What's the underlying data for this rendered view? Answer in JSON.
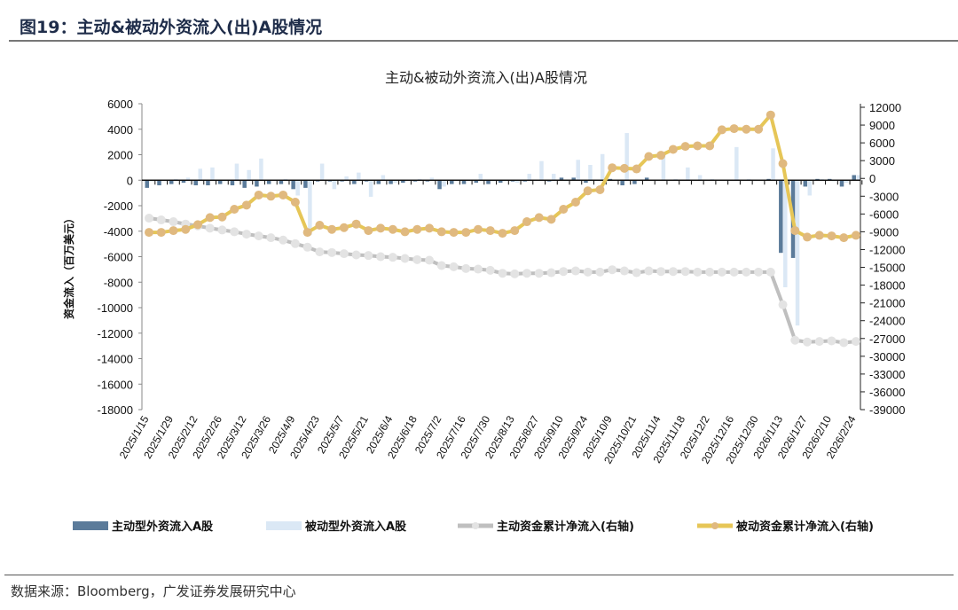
{
  "figure_title": "图19：主动&被动外资流入(出)A股情况",
  "source": "数据来源：Bloomberg，广发证券发展研究中心",
  "chart_data": {
    "type": "bar+line",
    "title": "主动&被动外资流入(出)A股情况",
    "ylabel": "资金流入（百万美元）",
    "ylim_left": [
      -18000,
      6000
    ],
    "ylim_right": [
      -39000,
      12000
    ],
    "left_ticks": [
      "6000",
      "4000",
      "2000",
      "0",
      "-2000",
      "-4000",
      "-6000",
      "-8000",
      "-10000",
      "-12000",
      "-14000",
      "-16000",
      "-18000"
    ],
    "right_ticks": [
      "12000",
      "9000",
      "6000",
      "3000",
      "0",
      "-3000",
      "-6000",
      "-9000",
      "-12000",
      "-15000",
      "-18000",
      "-21000",
      "-24000",
      "-27000",
      "-30000",
      "-33000",
      "-36000",
      "-39000"
    ],
    "x_tick_labels": [
      "2025/1/15",
      "2025/1/29",
      "2025/2/12",
      "2025/2/26",
      "2025/3/12",
      "2025/3/26",
      "2025/4/9",
      "2025/4/23",
      "2025/5/7",
      "2025/5/21",
      "2025/6/4",
      "2025/6/18",
      "2025/7/2",
      "2025/7/16",
      "2025/7/30",
      "2025/8/13",
      "2025/8/27",
      "2025/9/10",
      "2025/9/24",
      "2025/10/9",
      "2025/10/21",
      "2025/11/4",
      "2025/11/18",
      "2025/12/2",
      "2025/12/16",
      "2025/12/30",
      "2026/1/13",
      "2026/1/27",
      "2026/2/10",
      "2026/2/24"
    ],
    "legend_position": "bottom",
    "colors": {
      "active_bar": "#5b7b9a",
      "passive_bar": "#dbe8f5",
      "active_line": "#bfbfbf",
      "active_marker": "#e3e3e3",
      "passive_line": "#e6c657",
      "passive_marker": "#e0b97f"
    },
    "series": [
      {
        "name": "主动型外资流入A股",
        "type": "bar",
        "axis": "left",
        "values": [
          -600,
          -400,
          -300,
          -200,
          -400,
          -400,
          -300,
          -400,
          -600,
          -500,
          -300,
          -300,
          -700,
          -600,
          -100,
          -100,
          -100,
          -300,
          -100,
          -300,
          -300,
          -200,
          -100,
          -100,
          -700,
          -300,
          -300,
          -200,
          -300,
          -200,
          -100,
          -100,
          0,
          -100,
          200,
          200,
          -200,
          0,
          100,
          -400,
          -300,
          200,
          0,
          0,
          0,
          0,
          0,
          0,
          0,
          0,
          0,
          100,
          -5700,
          -6100,
          -500,
          100,
          100,
          -500,
          400
        ]
      },
      {
        "name": "被动型外资流入A股",
        "type": "bar",
        "axis": "left",
        "values": [
          -100,
          0,
          100,
          200,
          900,
          1000,
          -100,
          1300,
          800,
          1700,
          0,
          100,
          -1200,
          -4300,
          1300,
          -700,
          300,
          600,
          -1300,
          400,
          -200,
          0,
          100,
          200,
          -500,
          0,
          0,
          500,
          -100,
          -100,
          -200,
          500,
          1500,
          500,
          -100,
          1600,
          1200,
          2050,
          0,
          3700,
          0,
          0,
          2100,
          100,
          1000,
          400,
          100,
          0,
          2600,
          100,
          0,
          2500,
          -8400,
          -11400,
          -1200,
          100,
          -100,
          -200,
          400
        ]
      },
      {
        "name": "主动资金累计净流入(右轴)",
        "type": "line",
        "axis": "right",
        "values": [
          -6700,
          -7000,
          -7300,
          -7700,
          -8000,
          -8400,
          -8700,
          -9000,
          -9400,
          -9700,
          -10000,
          -10400,
          -11000,
          -11600,
          -12400,
          -12500,
          -12700,
          -12900,
          -13000,
          -13200,
          -13300,
          -13500,
          -13700,
          -13800,
          -14700,
          -14900,
          -15200,
          -15300,
          -15500,
          -16000,
          -16100,
          -16000,
          -16000,
          -15900,
          -15700,
          -15600,
          -15800,
          -15800,
          -15400,
          -15600,
          -15900,
          -15600,
          -15700,
          -15700,
          -15700,
          -15800,
          -15800,
          -15800,
          -15800,
          -15800,
          -15800,
          -15800,
          -21300,
          -27300,
          -27600,
          -27500,
          -27400,
          -27700,
          -27500
        ]
      },
      {
        "name": "被动资金累计净流入(右轴)",
        "type": "line",
        "axis": "right",
        "values": [
          -9100,
          -9100,
          -8800,
          -8600,
          -7800,
          -6600,
          -6500,
          -5200,
          -4500,
          -2800,
          -3000,
          -2800,
          -4000,
          -9100,
          -7900,
          -8600,
          -8300,
          -7700,
          -8800,
          -8400,
          -8600,
          -9000,
          -8600,
          -8400,
          -9000,
          -9100,
          -9100,
          -8600,
          -8800,
          -9250,
          -8800,
          -7300,
          -6600,
          -6900,
          -5200,
          -4000,
          -2100,
          -1900,
          1800,
          1700,
          1600,
          3700,
          3900,
          4900,
          5400,
          5500,
          5500,
          8200,
          8400,
          8300,
          8300,
          10700,
          2500,
          -8800,
          -9900,
          -9600,
          -9700,
          -10000,
          -9600
        ]
      }
    ]
  }
}
